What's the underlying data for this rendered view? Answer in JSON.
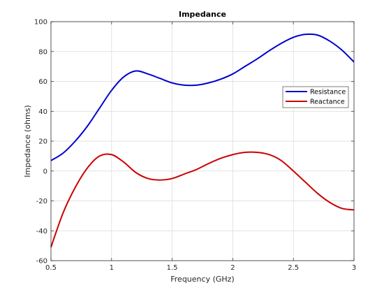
{
  "chart_data": {
    "type": "line",
    "title": "Impedance",
    "xlabel": "Frequency (GHz)",
    "ylabel": "Impedance (ohms)",
    "xlim": [
      0.5,
      3
    ],
    "ylim": [
      -60,
      100
    ],
    "xticks": [
      0.5,
      1,
      1.5,
      2,
      2.5,
      3
    ],
    "yticks": [
      -60,
      -40,
      -20,
      0,
      20,
      40,
      60,
      80,
      100
    ],
    "xtick_labels": [
      "0.5",
      "1",
      "1.5",
      "2",
      "2.5",
      "3"
    ],
    "ytick_labels": [
      "-60",
      "-40",
      "-20",
      "0",
      "20",
      "40",
      "60",
      "80",
      "100"
    ],
    "grid": true,
    "legend_position": "right",
    "x": [
      0.5,
      0.6,
      0.7,
      0.8,
      0.9,
      1.0,
      1.1,
      1.2,
      1.3,
      1.4,
      1.5,
      1.6,
      1.7,
      1.8,
      1.9,
      2.0,
      2.1,
      2.2,
      2.3,
      2.4,
      2.5,
      2.6,
      2.7,
      2.8,
      2.9,
      3.0
    ],
    "series": [
      {
        "name": "Resistance",
        "color": "#0000cc",
        "values": [
          7,
          12,
          20,
          30,
          42,
          54,
          63,
          67,
          65,
          62,
          59,
          57.5,
          57.5,
          59,
          61.5,
          65,
          70,
          75,
          80.5,
          85.5,
          89.5,
          91.5,
          91,
          87,
          81,
          73
        ]
      },
      {
        "name": "Reactance",
        "color": "#cc0000",
        "values": [
          -51,
          -28,
          -11,
          2,
          10,
          11,
          6,
          -1,
          -5,
          -6,
          -5,
          -2,
          1,
          5,
          8.5,
          11,
          12.5,
          12.5,
          11,
          7,
          0,
          -7.5,
          -15,
          -21,
          -25,
          -26
        ]
      }
    ]
  }
}
